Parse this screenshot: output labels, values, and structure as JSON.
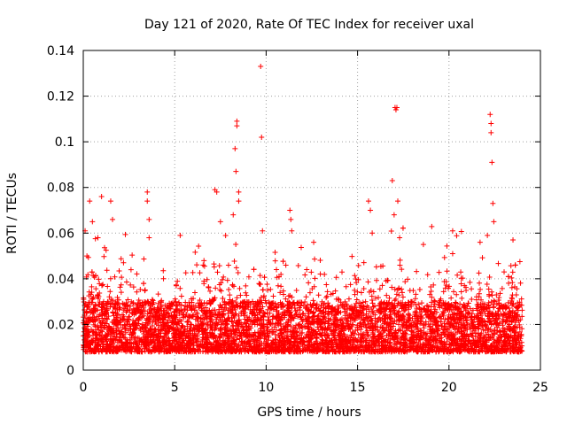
{
  "chart_data": {
    "type": "scatter",
    "title": "Day 121 of 2020, Rate Of TEC Index for receiver uxal",
    "xlabel": "GPS time / hours",
    "ylabel": "ROTI / TECUs",
    "xlim": [
      0,
      25
    ],
    "ylim": [
      0,
      0.14
    ],
    "grid": true,
    "marker": "+",
    "color": "#ff0000",
    "x_ticks": [
      {
        "value": 0,
        "label": "0"
      },
      {
        "value": 5,
        "label": "5"
      },
      {
        "value": 10,
        "label": "10"
      },
      {
        "value": 15,
        "label": "15"
      },
      {
        "value": 20,
        "label": "20"
      },
      {
        "value": 25,
        "label": "25"
      }
    ],
    "y_ticks": [
      {
        "value": 0,
        "label": "0"
      },
      {
        "value": 0.02,
        "label": "0.02"
      },
      {
        "value": 0.04,
        "label": "0.04"
      },
      {
        "value": 0.06,
        "label": "0.06"
      },
      {
        "value": 0.08,
        "label": "0.08"
      },
      {
        "value": 0.1,
        "label": "0.1"
      },
      {
        "value": 0.12,
        "label": "0.12"
      },
      {
        "value": 0.14,
        "label": "0.14"
      }
    ],
    "x_data_range": [
      0,
      24
    ],
    "baseline_band": [
      0.008,
      0.03
    ],
    "series": [
      {
        "name": "ROTI",
        "notable_points": [
          [
            0.1,
            0.061
          ],
          [
            0.2,
            0.05
          ],
          [
            0.35,
            0.074
          ],
          [
            0.5,
            0.065
          ],
          [
            0.8,
            0.058
          ],
          [
            1.0,
            0.076
          ],
          [
            1.5,
            0.074
          ],
          [
            1.6,
            0.066
          ],
          [
            2.2,
            0.047
          ],
          [
            3.5,
            0.078
          ],
          [
            3.5,
            0.074
          ],
          [
            3.6,
            0.066
          ],
          [
            3.6,
            0.058
          ],
          [
            5.3,
            0.059
          ],
          [
            7.2,
            0.079
          ],
          [
            7.3,
            0.078
          ],
          [
            7.5,
            0.065
          ],
          [
            8.2,
            0.068
          ],
          [
            8.3,
            0.097
          ],
          [
            8.35,
            0.087
          ],
          [
            8.4,
            0.109
          ],
          [
            8.4,
            0.107
          ],
          [
            8.5,
            0.078
          ],
          [
            8.5,
            0.074
          ],
          [
            9.7,
            0.133
          ],
          [
            9.75,
            0.102
          ],
          [
            9.8,
            0.061
          ],
          [
            11.3,
            0.07
          ],
          [
            11.35,
            0.066
          ],
          [
            11.4,
            0.061
          ],
          [
            12.6,
            0.056
          ],
          [
            15.6,
            0.074
          ],
          [
            15.7,
            0.07
          ],
          [
            15.8,
            0.06
          ],
          [
            16.9,
            0.083
          ],
          [
            17.0,
            0.068
          ],
          [
            17.05,
            0.115
          ],
          [
            17.1,
            0.114
          ],
          [
            17.15,
            0.115
          ],
          [
            17.2,
            0.074
          ],
          [
            17.3,
            0.058
          ],
          [
            18.6,
            0.055
          ],
          [
            20.2,
            0.061
          ],
          [
            20.2,
            0.051
          ],
          [
            21.7,
            0.056
          ],
          [
            22.1,
            0.059
          ],
          [
            22.25,
            0.112
          ],
          [
            22.3,
            0.108
          ],
          [
            22.3,
            0.104
          ],
          [
            22.35,
            0.091
          ],
          [
            22.4,
            0.073
          ],
          [
            22.45,
            0.065
          ],
          [
            23.5,
            0.057
          ]
        ]
      }
    ]
  }
}
